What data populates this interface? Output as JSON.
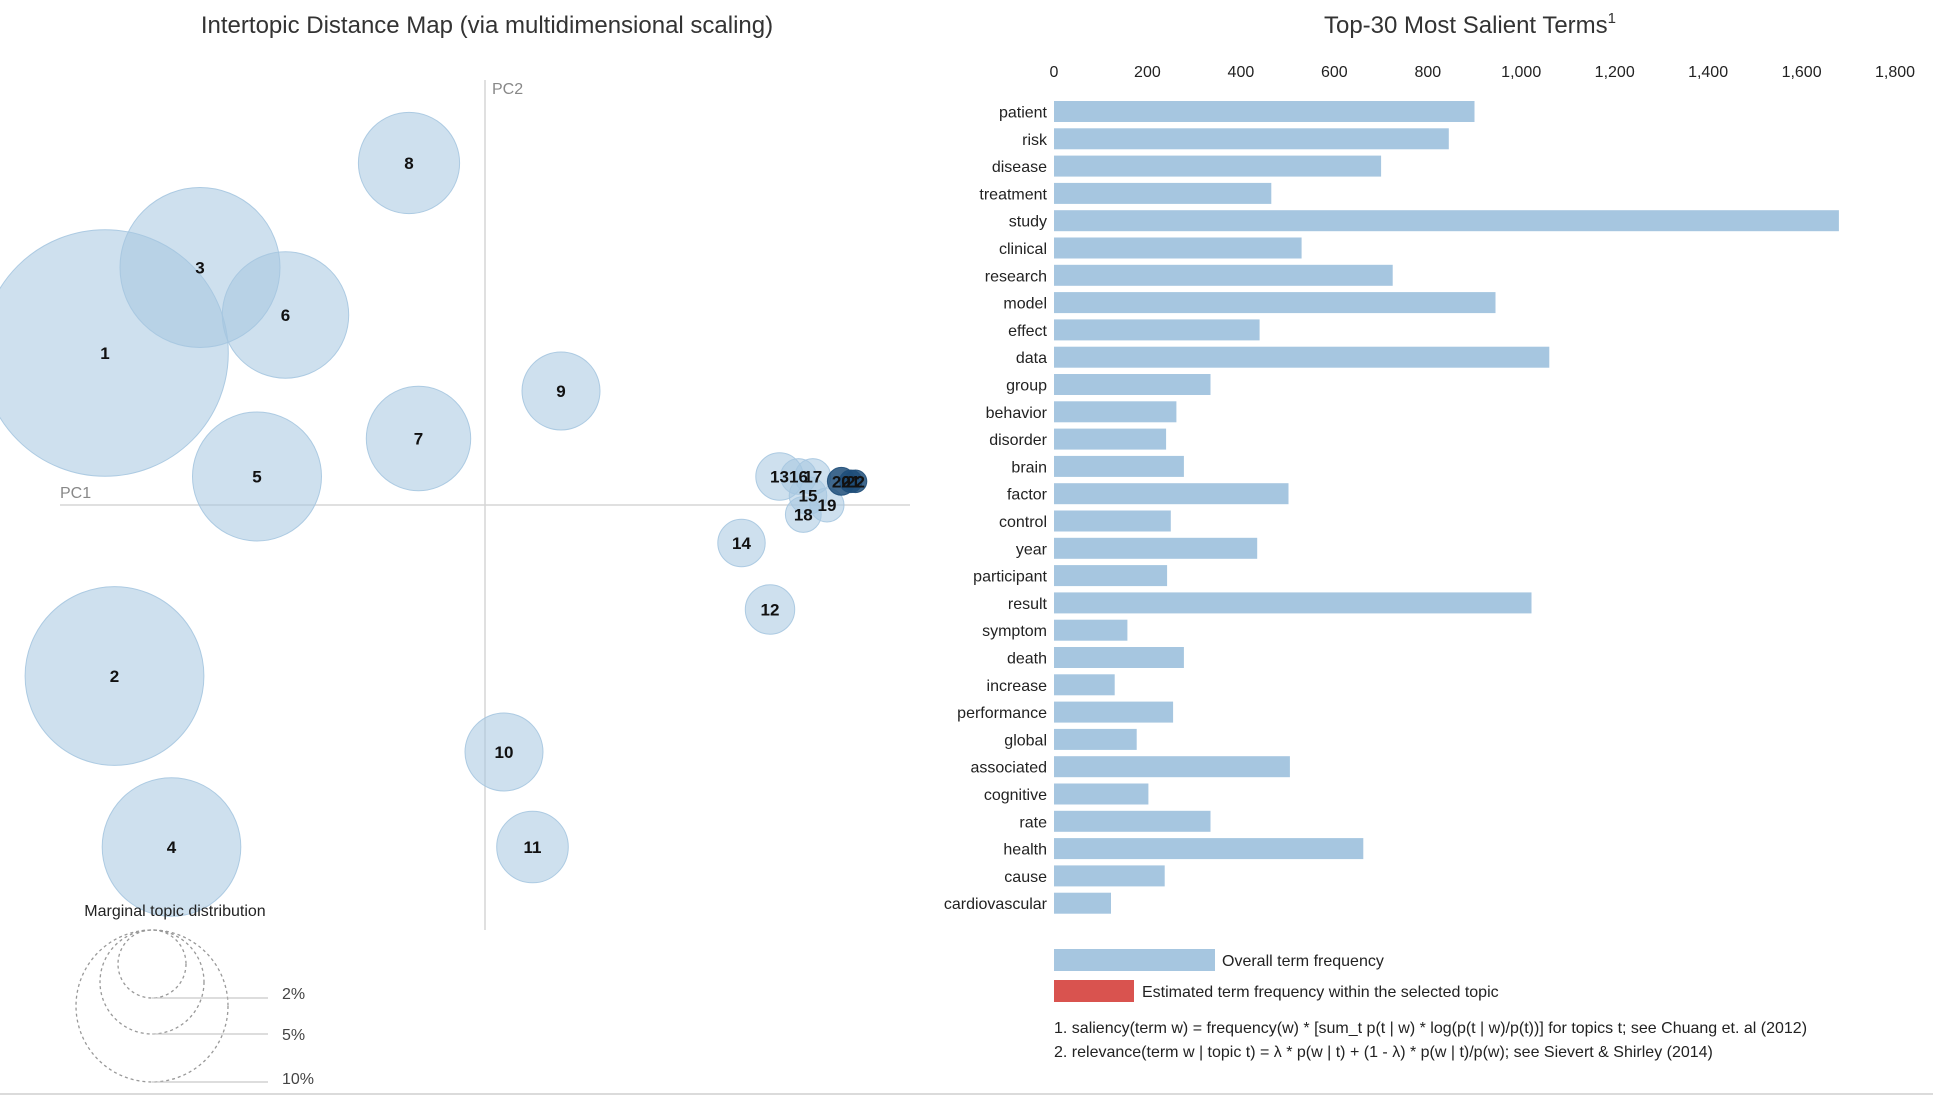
{
  "map": {
    "title": "Intertopic Distance Map (via multidimensional scaling)",
    "axis_x_label": "PC1",
    "axis_y_label": "PC2",
    "circle_color": "#a6c6e0",
    "circle_stroke": "#7fa9cf",
    "dense_color": "#1f4e79"
  },
  "bars": {
    "title": "Top-30 Most Salient Terms",
    "title_sup": "1",
    "bar_color": "#a6c6e0",
    "topic_color": "#d9534f"
  },
  "legend": {
    "overall": "Overall term frequency",
    "estimated": "Estimated term frequency within the selected topic"
  },
  "notes": {
    "note1": "1. saliency(term w) = frequency(w) * [sum_t p(t | w) * log(p(t | w)/p(t))] for topics t; see Chuang et. al (2012)",
    "note2": "2. relevance(term w | topic t) = λ * p(w | t) + (1 - λ) * p(w | t)/p(w); see Sievert & Shirley (2014)"
  },
  "distribution": {
    "title": "Marginal topic distribution",
    "labels": [
      "2%",
      "5%",
      "10%"
    ]
  },
  "chart_data": [
    {
      "type": "scatter",
      "title": "Intertopic Distance Map (via multidimensional scaling)",
      "xlabel": "PC1",
      "ylabel": "PC2",
      "xlim": [
        -0.45,
        0.45
      ],
      "ylim": [
        -0.45,
        0.45
      ],
      "points": [
        {
          "topic": "1",
          "x": -0.4,
          "y": 0.16,
          "share": 9.5
        },
        {
          "topic": "2",
          "x": -0.39,
          "y": -0.18,
          "share": 5.0
        },
        {
          "topic": "3",
          "x": -0.3,
          "y": 0.25,
          "share": 4.0
        },
        {
          "topic": "4",
          "x": -0.33,
          "y": -0.36,
          "share": 3.0
        },
        {
          "topic": "5",
          "x": -0.24,
          "y": 0.03,
          "share": 2.6
        },
        {
          "topic": "6",
          "x": -0.21,
          "y": 0.2,
          "share": 2.5
        },
        {
          "topic": "7",
          "x": -0.07,
          "y": 0.07,
          "share": 1.7
        },
        {
          "topic": "8",
          "x": -0.08,
          "y": 0.36,
          "share": 1.6
        },
        {
          "topic": "9",
          "x": 0.08,
          "y": 0.12,
          "share": 0.95
        },
        {
          "topic": "10",
          "x": 0.02,
          "y": -0.26,
          "share": 0.95
        },
        {
          "topic": "11",
          "x": 0.05,
          "y": -0.36,
          "share": 0.8
        },
        {
          "topic": "12",
          "x": 0.3,
          "y": -0.11,
          "share": 0.38
        },
        {
          "topic": "13",
          "x": 0.31,
          "y": 0.03,
          "share": 0.35
        },
        {
          "topic": "14",
          "x": 0.27,
          "y": -0.04,
          "share": 0.35
        },
        {
          "topic": "15",
          "x": 0.34,
          "y": 0.01,
          "share": 0.22
        },
        {
          "topic": "16",
          "x": 0.33,
          "y": 0.03,
          "share": 0.2
        },
        {
          "topic": "17",
          "x": 0.345,
          "y": 0.03,
          "share": 0.2
        },
        {
          "topic": "18",
          "x": 0.335,
          "y": -0.01,
          "share": 0.2
        },
        {
          "topic": "19",
          "x": 0.36,
          "y": 0.0,
          "share": 0.18
        },
        {
          "topic": "20",
          "x": 0.375,
          "y": 0.025,
          "share": 0.12
        },
        {
          "topic": "21",
          "x": 0.385,
          "y": 0.025,
          "share": 0.08
        },
        {
          "topic": "22",
          "x": 0.39,
          "y": 0.025,
          "share": 0.08
        }
      ]
    },
    {
      "type": "bar",
      "orientation": "horizontal",
      "title": "Top-30 Most Salient Terms",
      "xlim": [
        0,
        1800
      ],
      "ticks": [
        0,
        200,
        400,
        600,
        800,
        1000,
        1200,
        1400,
        1600,
        1800
      ],
      "tick_labels": [
        "0",
        "200",
        "400",
        "600",
        "800",
        "1,000",
        "1,200",
        "1,400",
        "1,600",
        "1,800"
      ],
      "categories": [
        "patient",
        "risk",
        "disease",
        "treatment",
        "study",
        "clinical",
        "research",
        "model",
        "effect",
        "data",
        "group",
        "behavior",
        "disorder",
        "brain",
        "factor",
        "control",
        "year",
        "participant",
        "result",
        "symptom",
        "death",
        "increase",
        "performance",
        "global",
        "associated",
        "cognitive",
        "rate",
        "health",
        "cause",
        "cardiovascular"
      ],
      "series": [
        {
          "name": "Overall term frequency",
          "values": [
            900,
            845,
            700,
            465,
            1680,
            530,
            725,
            945,
            440,
            1060,
            335,
            262,
            240,
            278,
            502,
            250,
            435,
            242,
            1022,
            157,
            278,
            130,
            255,
            177,
            505,
            202,
            335,
            662,
            237,
            122
          ]
        }
      ]
    }
  ]
}
